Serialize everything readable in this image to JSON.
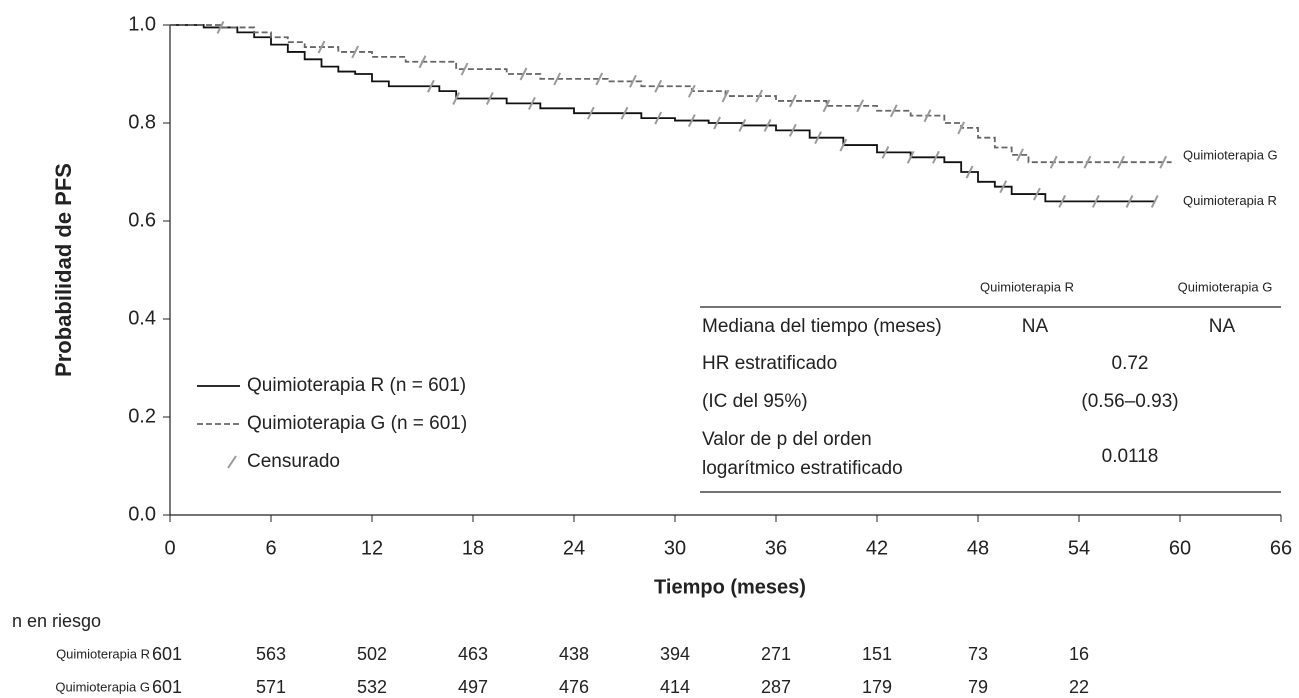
{
  "chart_data": {
    "type": "km",
    "y_label": "Probabilidad de PFS",
    "x_label": "Tiempo (meses)",
    "xlim": [
      0,
      66
    ],
    "xticks": [
      0,
      6,
      12,
      18,
      24,
      30,
      36,
      42,
      48,
      54,
      60,
      66
    ],
    "ylim": [
      0,
      1
    ],
    "yticks": [
      {
        "value": 0,
        "label": "0.0"
      },
      {
        "value": 0.2,
        "label": "0.2"
      },
      {
        "value": 0.4,
        "label": "0.4"
      },
      {
        "value": 0.6,
        "label": "0.6"
      },
      {
        "value": 0.8,
        "label": "0.8"
      },
      {
        "value": 1,
        "label": "1.0"
      }
    ],
    "censor_label": "Censurado",
    "censor_color": "#9a9a9a",
    "series": [
      {
        "name": "Quimioterapia R",
        "legend_label": "Quimioterapia R (n = 601)",
        "color": "#111111",
        "dash": false,
        "x": [
          0,
          2,
          4,
          5,
          6,
          7,
          8,
          9,
          10,
          11,
          12,
          13,
          16,
          17,
          20,
          22,
          24,
          28,
          30,
          32,
          34,
          36,
          38,
          40,
          42,
          44,
          46,
          47,
          48,
          49,
          50,
          52,
          58.5
        ],
        "values": [
          1.0,
          0.995,
          0.985,
          0.975,
          0.96,
          0.945,
          0.93,
          0.915,
          0.905,
          0.9,
          0.885,
          0.875,
          0.865,
          0.85,
          0.84,
          0.83,
          0.82,
          0.81,
          0.805,
          0.8,
          0.795,
          0.785,
          0.77,
          0.755,
          0.74,
          0.73,
          0.72,
          0.7,
          0.68,
          0.67,
          0.655,
          0.64,
          0.64
        ],
        "censored": [
          15.5,
          17,
          19,
          21.5,
          25,
          27,
          29,
          31,
          32.5,
          34,
          35.5,
          37,
          38.5,
          40,
          42.5,
          44,
          45.5,
          47.5,
          49.5,
          51.5,
          53,
          55,
          57,
          58.5
        ],
        "at_risk": [
          601,
          563,
          502,
          463,
          438,
          394,
          271,
          151,
          73,
          16
        ]
      },
      {
        "name": "Quimioterapia G",
        "legend_label": "Quimioterapia G (n = 601)",
        "color": "#666666",
        "dash": true,
        "x": [
          0,
          3,
          5,
          6,
          7,
          8,
          10,
          12,
          14,
          17,
          20,
          22,
          26,
          28,
          31,
          33,
          36,
          39,
          42,
          44,
          46,
          47,
          48,
          49,
          50,
          51,
          59.5
        ],
        "values": [
          1.0,
          0.995,
          0.985,
          0.975,
          0.965,
          0.955,
          0.945,
          0.935,
          0.925,
          0.91,
          0.9,
          0.89,
          0.885,
          0.875,
          0.865,
          0.855,
          0.845,
          0.835,
          0.825,
          0.815,
          0.8,
          0.79,
          0.77,
          0.75,
          0.735,
          0.72,
          0.72
        ],
        "censored": [
          3,
          9,
          11,
          15,
          17.5,
          21,
          23,
          25.5,
          27.5,
          29,
          31,
          33,
          35,
          37,
          39,
          41,
          43,
          45,
          47,
          50.5,
          52.5,
          54.5,
          56.5,
          59
        ],
        "at_risk": [
          601,
          571,
          532,
          497,
          476,
          414,
          287,
          179,
          79,
          22
        ]
      }
    ],
    "risk_title": "n en riesgo",
    "risk_times": [
      0,
      6,
      12,
      18,
      24,
      30,
      36,
      42,
      48,
      54
    ],
    "stats": {
      "columns": [
        "Quimioterapia R",
        "Quimioterapia G"
      ],
      "median_label": "Mediana del tiempo (meses)",
      "median_values": [
        "NA",
        "NA"
      ],
      "hr_label": "HR estratificado",
      "hr_value": "0.72",
      "ci_label": "(IC del 95%)",
      "ci_value": "(0.56–0.93)",
      "p_label": [
        "Valor de p del orden",
        "logarítmico estratificado"
      ],
      "p_value": "0.0118"
    }
  }
}
